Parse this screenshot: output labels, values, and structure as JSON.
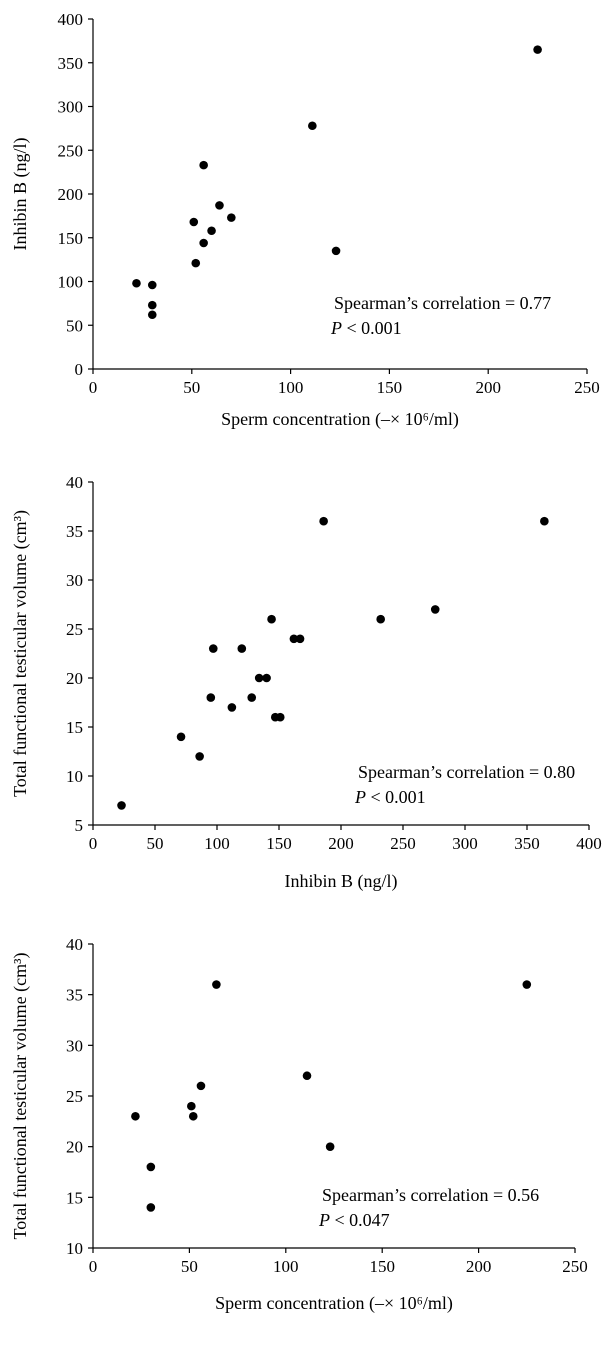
{
  "chart_data": [
    {
      "type": "scatter",
      "xlabel": "Sperm concentration (–× 10⁶/ml)",
      "ylabel": "Inhibin B (ng/l)",
      "xlim": [
        0,
        250
      ],
      "ylim": [
        0,
        400
      ],
      "xticks": [
        0,
        50,
        100,
        150,
        200,
        250
      ],
      "yticks": [
        0,
        50,
        100,
        150,
        200,
        250,
        300,
        350,
        400
      ],
      "grid": false,
      "points": [
        [
          22,
          98
        ],
        [
          30,
          96
        ],
        [
          30,
          73
        ],
        [
          30,
          62
        ],
        [
          51,
          168
        ],
        [
          52,
          121
        ],
        [
          56,
          233
        ],
        [
          56,
          144
        ],
        [
          60,
          158
        ],
        [
          64,
          187
        ],
        [
          70,
          173
        ],
        [
          111,
          278
        ],
        [
          123,
          135
        ],
        [
          225,
          365
        ]
      ],
      "annotation": {
        "line1": "Spearman’s correlation = 0.77",
        "p_label": "P",
        "p_rest": " < 0.001"
      }
    },
    {
      "type": "scatter",
      "xlabel": "Inhibin B (ng/l)",
      "ylabel": "Total functional testicular volume (cm³)",
      "xlim": [
        0,
        400
      ],
      "ylim": [
        5,
        40
      ],
      "xticks": [
        0,
        50,
        100,
        150,
        200,
        250,
        300,
        350,
        400
      ],
      "yticks": [
        5,
        10,
        15,
        20,
        25,
        30,
        35,
        40
      ],
      "grid": false,
      "points": [
        [
          23,
          7
        ],
        [
          71,
          14
        ],
        [
          86,
          12
        ],
        [
          95,
          18
        ],
        [
          97,
          23
        ],
        [
          112,
          17
        ],
        [
          120,
          23
        ],
        [
          128,
          18
        ],
        [
          134,
          20
        ],
        [
          140,
          20
        ],
        [
          144,
          26
        ],
        [
          147,
          16
        ],
        [
          151,
          16
        ],
        [
          162,
          24
        ],
        [
          167,
          24
        ],
        [
          186,
          36
        ],
        [
          232,
          26
        ],
        [
          276,
          27
        ],
        [
          364,
          36
        ]
      ],
      "annotation": {
        "line1": "Spearman’s correlation = 0.80",
        "p_label": "P",
        "p_rest": " < 0.001"
      }
    },
    {
      "type": "scatter",
      "xlabel": "Sperm concentration (–× 10⁶/ml)",
      "ylabel": "Total functional testicular volume (cm³)",
      "xlim": [
        0,
        250
      ],
      "ylim": [
        10,
        40
      ],
      "xticks": [
        0,
        50,
        100,
        150,
        200,
        250
      ],
      "yticks": [
        10,
        15,
        20,
        25,
        30,
        35,
        40
      ],
      "grid": false,
      "points": [
        [
          22,
          23
        ],
        [
          30,
          18
        ],
        [
          30,
          14
        ],
        [
          51,
          24
        ],
        [
          52,
          23
        ],
        [
          56,
          26
        ],
        [
          64,
          36
        ],
        [
          111,
          27
        ],
        [
          123,
          20
        ],
        [
          225,
          36
        ]
      ],
      "annotation": {
        "line1": "Spearman’s correlation = 0.56",
        "p_label": "P",
        "p_rest": " < 0.047"
      }
    }
  ]
}
